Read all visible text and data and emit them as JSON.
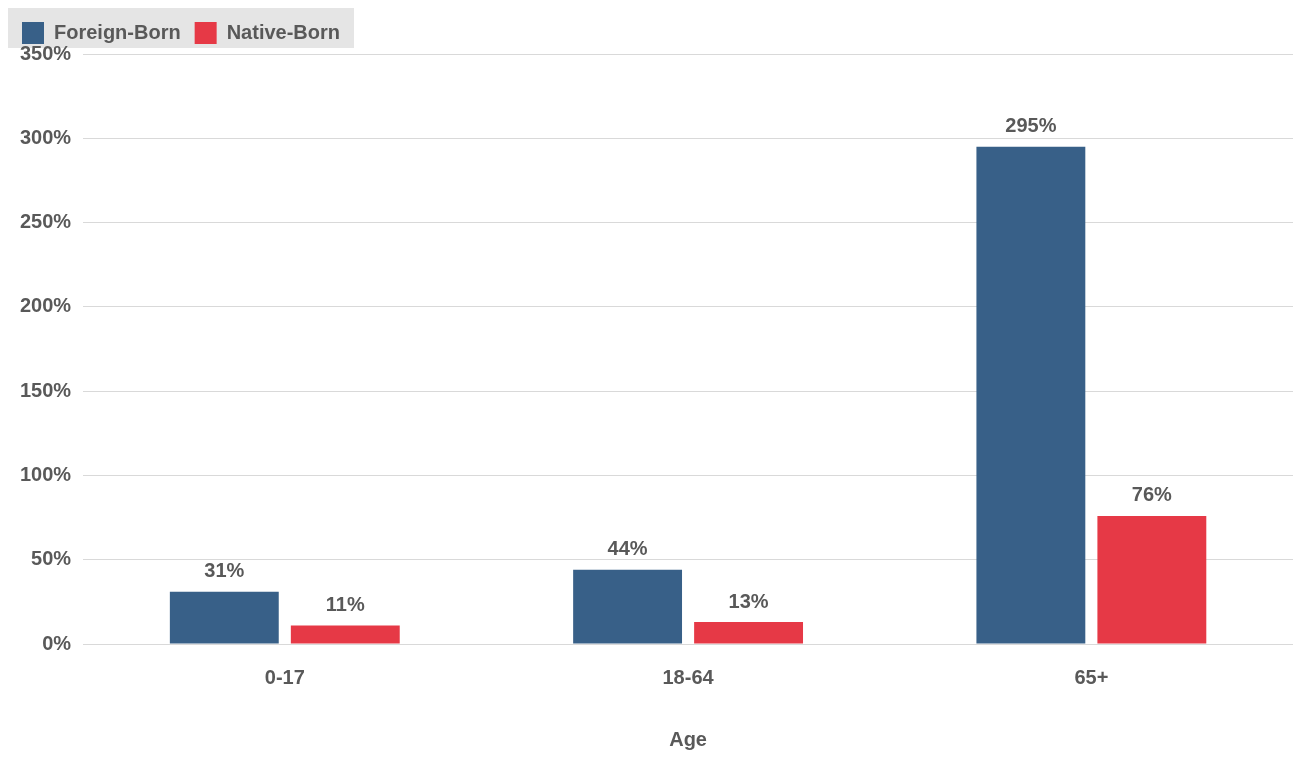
{
  "chart_data": {
    "type": "bar",
    "xlabel": "Age",
    "categories": [
      "0-17",
      "18-64",
      "65+"
    ],
    "series": [
      {
        "name": "Foreign-Born",
        "color": "#386088",
        "values": [
          31,
          44,
          295
        ],
        "value_labels": [
          "31%",
          "44%",
          "295%"
        ]
      },
      {
        "name": "Native-Born",
        "color": "#e63946",
        "values": [
          11,
          13,
          76
        ],
        "value_labels": [
          "11%",
          "13%",
          "76%"
        ]
      }
    ],
    "ylim": [
      0,
      350
    ],
    "yticks": [
      {
        "value": 0,
        "label": "0%"
      },
      {
        "value": 50,
        "label": "50%"
      },
      {
        "value": 100,
        "label": "100%"
      },
      {
        "value": 150,
        "label": "150%"
      },
      {
        "value": 200,
        "label": "200%"
      },
      {
        "value": 250,
        "label": "250%"
      },
      {
        "value": 300,
        "label": "300%"
      },
      {
        "value": 350,
        "label": "350%"
      }
    ],
    "grid": "y",
    "legend": "top left"
  }
}
